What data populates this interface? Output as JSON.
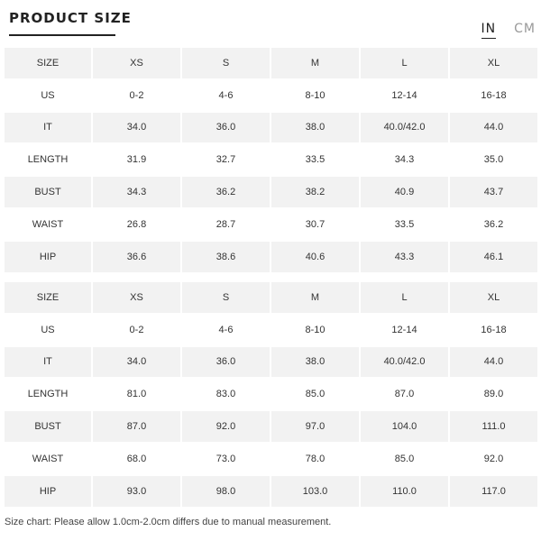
{
  "header": {
    "title": "PRODUCT SIZE",
    "units": [
      {
        "label": "IN",
        "active": true
      },
      {
        "label": "CM",
        "active": false
      }
    ]
  },
  "tables": [
    {
      "columns": [
        "SIZE",
        "XS",
        "S",
        "M",
        "L",
        "XL"
      ],
      "rows": [
        {
          "label": "US",
          "cells": [
            "0-2",
            "4-6",
            "8-10",
            "12-14",
            "16-18"
          ]
        },
        {
          "label": "IT",
          "cells": [
            "34.0",
            "36.0",
            "38.0",
            "40.0/42.0",
            "44.0"
          ]
        },
        {
          "label": "LENGTH",
          "cells": [
            "31.9",
            "32.7",
            "33.5",
            "34.3",
            "35.0"
          ]
        },
        {
          "label": "BUST",
          "cells": [
            "34.3",
            "36.2",
            "38.2",
            "40.9",
            "43.7"
          ]
        },
        {
          "label": "WAIST",
          "cells": [
            "26.8",
            "28.7",
            "30.7",
            "33.5",
            "36.2"
          ]
        },
        {
          "label": "HIP",
          "cells": [
            "36.6",
            "38.6",
            "40.6",
            "43.3",
            "46.1"
          ]
        }
      ]
    },
    {
      "columns": [
        "SIZE",
        "XS",
        "S",
        "M",
        "L",
        "XL"
      ],
      "rows": [
        {
          "label": "US",
          "cells": [
            "0-2",
            "4-6",
            "8-10",
            "12-14",
            "16-18"
          ]
        },
        {
          "label": "IT",
          "cells": [
            "34.0",
            "36.0",
            "38.0",
            "40.0/42.0",
            "44.0"
          ]
        },
        {
          "label": "LENGTH",
          "cells": [
            "81.0",
            "83.0",
            "85.0",
            "87.0",
            "89.0"
          ]
        },
        {
          "label": "BUST",
          "cells": [
            "87.0",
            "92.0",
            "97.0",
            "104.0",
            "111.0"
          ]
        },
        {
          "label": "WAIST",
          "cells": [
            "68.0",
            "73.0",
            "78.0",
            "85.0",
            "92.0"
          ]
        },
        {
          "label": "HIP",
          "cells": [
            "93.0",
            "98.0",
            "103.0",
            "110.0",
            "117.0"
          ]
        }
      ]
    }
  ],
  "footer": {
    "note": "Size chart: Please allow 1.0cm-2.0cm differs due to manual measurement."
  }
}
